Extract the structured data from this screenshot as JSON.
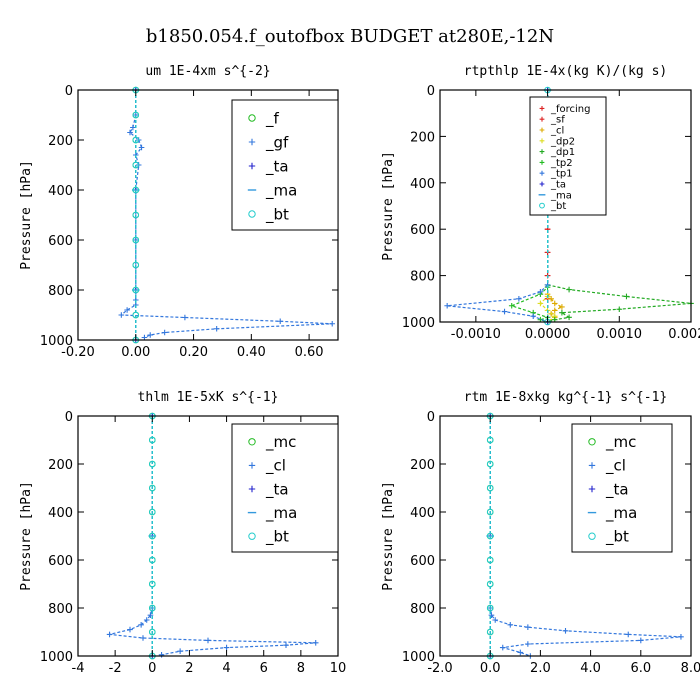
{
  "figure_title": "b1850.054.f_outofbox  BUDGET at280E,-12N",
  "chart_data": [
    {
      "type": "line",
      "title": "um  1E-4xm s^{-2}",
      "ylabel": "Pressure [hPa]",
      "xlim": [
        -0.2,
        0.7
      ],
      "ylim": [
        1000,
        0
      ],
      "xticks": [
        "-0.20",
        "0.00",
        "0.20",
        "0.40",
        "0.60"
      ],
      "xtick_values": [
        -0.2,
        0.0,
        0.2,
        0.4,
        0.6
      ],
      "yticks": [
        "0",
        "200",
        "400",
        "600",
        "800",
        "1000"
      ],
      "ytick_values": [
        0,
        200,
        400,
        600,
        800,
        1000
      ],
      "legend_font": 15,
      "series": [
        {
          "name": "_f",
          "color": "#22bb22",
          "marker": "circle",
          "x": [
            0,
            0,
            0,
            0,
            0,
            0,
            0,
            0,
            0,
            0,
            0
          ],
          "y": [
            0,
            100,
            200,
            300,
            400,
            500,
            600,
            700,
            800,
            900,
            1000
          ]
        },
        {
          "name": "_gf",
          "color": "#3377dd",
          "marker": "plus",
          "x": [
            0,
            0,
            -0.01,
            -0.02,
            0.01,
            0.02,
            0.0,
            0.01,
            0,
            0,
            0,
            0,
            0,
            -0.03,
            -0.05,
            0.17,
            0.5,
            0.68,
            0.28,
            0.1,
            0.05,
            0.03
          ],
          "y": [
            0,
            100,
            150,
            170,
            200,
            230,
            260,
            300,
            400,
            600,
            800,
            840,
            860,
            880,
            900,
            910,
            925,
            935,
            955,
            970,
            980,
            990
          ]
        },
        {
          "name": "_ta",
          "color": "#2222cc",
          "marker": "plus",
          "x": [
            0,
            0,
            0,
            0
          ],
          "y": [
            0,
            400,
            800,
            1000
          ]
        },
        {
          "name": "_ma",
          "color": "#3399dd",
          "marker": "dash",
          "x": [
            0,
            0,
            0,
            0
          ],
          "y": [
            0,
            400,
            800,
            1000
          ]
        },
        {
          "name": "_bt",
          "color": "#22cccc",
          "marker": "circle",
          "x": [
            0,
            0,
            0,
            0,
            0,
            0,
            0,
            0,
            0,
            0,
            0
          ],
          "y": [
            0,
            100,
            200,
            300,
            400,
            500,
            600,
            700,
            800,
            900,
            1000
          ]
        }
      ]
    },
    {
      "type": "line",
      "title": "rtpthlp  1E-4x(kg K)/(kg s)",
      "ylabel": "Pressure [hPa]",
      "xlim": [
        -0.0015,
        0.002
      ],
      "ylim": [
        1000,
        0
      ],
      "xticks": [
        "-0.0010",
        "0.0000",
        "0.0010",
        "0.0020"
      ],
      "xtick_values": [
        -0.001,
        0.0,
        0.001,
        0.002
      ],
      "yticks": [
        "0",
        "200",
        "400",
        "600",
        "800",
        "1000"
      ],
      "ytick_values": [
        0,
        200,
        400,
        600,
        800,
        1000
      ],
      "legend_font": 10,
      "series": [
        {
          "name": "_forcing",
          "color": "#dd2222",
          "marker": "plus",
          "x": [
            0,
            0,
            0,
            0,
            0,
            0,
            0,
            0,
            0,
            0,
            0
          ],
          "y": [
            0,
            100,
            200,
            300,
            400,
            500,
            600,
            700,
            800,
            900,
            1000
          ]
        },
        {
          "name": "_sf",
          "color": "#dd2222",
          "marker": "plus",
          "x": [
            0,
            0,
            0,
            0,
            0,
            0,
            0,
            0,
            0,
            0,
            0
          ],
          "y": [
            0,
            100,
            200,
            300,
            400,
            500,
            600,
            700,
            800,
            900,
            1000
          ]
        },
        {
          "name": "_cl",
          "color": "#ddaa00",
          "marker": "plus",
          "x": [
            0,
            0,
            5e-05,
            0.0001,
            0.0002,
            0.0001,
            5e-05,
            0.0001,
            0
          ],
          "y": [
            0,
            880,
            900,
            920,
            935,
            950,
            965,
            980,
            1000
          ]
        },
        {
          "name": "_dp2",
          "color": "#dddd22",
          "marker": "plus",
          "x": [
            0,
            0,
            -0.0001,
            0,
            0.0001,
            0
          ],
          "y": [
            0,
            890,
            920,
            950,
            975,
            1000
          ]
        },
        {
          "name": "_dp1",
          "color": "#22aa22",
          "marker": "plus",
          "x": [
            0,
            0,
            0.0003,
            0.0011,
            0.002,
            0.001,
            0.0002,
            0.0003,
            0.0001,
            0
          ],
          "y": [
            0,
            840,
            860,
            890,
            920,
            945,
            960,
            980,
            990,
            1000
          ]
        },
        {
          "name": "_tp2",
          "color": "#22bb22",
          "marker": "plus",
          "x": [
            0,
            0,
            -0.0001,
            -0.0005,
            -0.0002,
            0,
            -0.0001,
            0
          ],
          "y": [
            0,
            850,
            880,
            930,
            960,
            980,
            990,
            1000
          ]
        },
        {
          "name": "_tp1",
          "color": "#3377dd",
          "marker": "plus",
          "x": [
            0,
            0,
            -0.0001,
            -0.0004,
            -0.0014,
            -0.0006,
            -0.0002,
            0
          ],
          "y": [
            0,
            840,
            870,
            900,
            930,
            955,
            975,
            1000
          ]
        },
        {
          "name": "_ta",
          "color": "#2222cc",
          "marker": "plus",
          "x": [
            0,
            0,
            0
          ],
          "y": [
            0,
            500,
            1000
          ]
        },
        {
          "name": "_ma",
          "color": "#3399dd",
          "marker": "dash",
          "x": [
            0,
            0,
            0
          ],
          "y": [
            0,
            500,
            1000
          ]
        },
        {
          "name": "_bt",
          "color": "#22cccc",
          "marker": "circle",
          "x": [
            0,
            0,
            0
          ],
          "y": [
            0,
            500,
            1000
          ]
        }
      ]
    },
    {
      "type": "line",
      "title": "thlm  1E-5xK s^{-1}",
      "ylabel": "Pressure [hPa]",
      "xlim": [
        -4,
        10
      ],
      "ylim": [
        1000,
        0
      ],
      "xticks": [
        "-4",
        "-2",
        "0",
        "2",
        "4",
        "6",
        "8",
        "10"
      ],
      "xtick_values": [
        -4,
        -2,
        0,
        2,
        4,
        6,
        8,
        10
      ],
      "yticks": [
        "0",
        "200",
        "400",
        "600",
        "800",
        "1000"
      ],
      "ytick_values": [
        0,
        200,
        400,
        600,
        800,
        1000
      ],
      "legend_font": 15,
      "series": [
        {
          "name": "_mc",
          "color": "#22bb22",
          "marker": "circle",
          "x": [
            0,
            0,
            0,
            0,
            0,
            0,
            0,
            0,
            0,
            0,
            0
          ],
          "y": [
            0,
            100,
            200,
            300,
            400,
            500,
            600,
            700,
            800,
            900,
            1000
          ]
        },
        {
          "name": "_cl",
          "color": "#3377dd",
          "marker": "plus",
          "x": [
            0,
            0,
            -0.1,
            -0.3,
            -0.6,
            -1.2,
            -2.3,
            -0.5,
            3.0,
            8.8,
            7.2,
            4.0,
            1.5,
            0.5
          ],
          "y": [
            0,
            800,
            830,
            850,
            870,
            890,
            910,
            925,
            935,
            945,
            955,
            965,
            980,
            995
          ]
        },
        {
          "name": "_ta",
          "color": "#2222cc",
          "marker": "plus",
          "x": [
            0,
            0,
            0
          ],
          "y": [
            0,
            500,
            1000
          ]
        },
        {
          "name": "_ma",
          "color": "#3399dd",
          "marker": "dash",
          "x": [
            0,
            0,
            0
          ],
          "y": [
            0,
            500,
            1000
          ]
        },
        {
          "name": "_bt",
          "color": "#22cccc",
          "marker": "circle",
          "x": [
            0,
            0,
            0,
            0,
            0,
            0,
            0,
            0,
            0,
            0,
            0
          ],
          "y": [
            0,
            100,
            200,
            300,
            400,
            500,
            600,
            700,
            800,
            900,
            1000
          ]
        }
      ]
    },
    {
      "type": "line",
      "title": "rtm  1E-8xkg kg^{-1} s^{-1}",
      "ylabel": "Pressure [hPa]",
      "xlim": [
        -2,
        8
      ],
      "ylim": [
        1000,
        0
      ],
      "xticks": [
        "-2.0",
        "0.0",
        "2.0",
        "4.0",
        "6.0",
        "8.0"
      ],
      "xtick_values": [
        -2,
        0,
        2,
        4,
        6,
        8
      ],
      "yticks": [
        "0",
        "200",
        "400",
        "600",
        "800",
        "1000"
      ],
      "ytick_values": [
        0,
        200,
        400,
        600,
        800,
        1000
      ],
      "legend_font": 15,
      "series": [
        {
          "name": "_mc",
          "color": "#22bb22",
          "marker": "circle",
          "x": [
            0,
            0,
            0,
            0,
            0,
            0,
            0,
            0,
            0,
            0,
            0
          ],
          "y": [
            0,
            100,
            200,
            300,
            400,
            500,
            600,
            700,
            800,
            900,
            1000
          ]
        },
        {
          "name": "_cl",
          "color": "#3377dd",
          "marker": "plus",
          "x": [
            0,
            0,
            0.05,
            0.2,
            0.8,
            1.5,
            3.0,
            5.5,
            7.6,
            6.0,
            1.5,
            0.5,
            1.2,
            1.6
          ],
          "y": [
            0,
            800,
            830,
            850,
            870,
            880,
            895,
            910,
            920,
            935,
            950,
            965,
            985,
            1000
          ]
        },
        {
          "name": "_ta",
          "color": "#2222cc",
          "marker": "plus",
          "x": [
            0,
            0,
            0
          ],
          "y": [
            0,
            500,
            1000
          ]
        },
        {
          "name": "_ma",
          "color": "#3399dd",
          "marker": "dash",
          "x": [
            0,
            0,
            0
          ],
          "y": [
            0,
            500,
            1000
          ]
        },
        {
          "name": "_bt",
          "color": "#22cccc",
          "marker": "circle",
          "x": [
            0,
            0,
            0,
            0,
            0,
            0,
            0,
            0,
            0,
            0,
            0
          ],
          "y": [
            0,
            100,
            200,
            300,
            400,
            500,
            600,
            700,
            800,
            900,
            1000
          ]
        }
      ]
    }
  ]
}
